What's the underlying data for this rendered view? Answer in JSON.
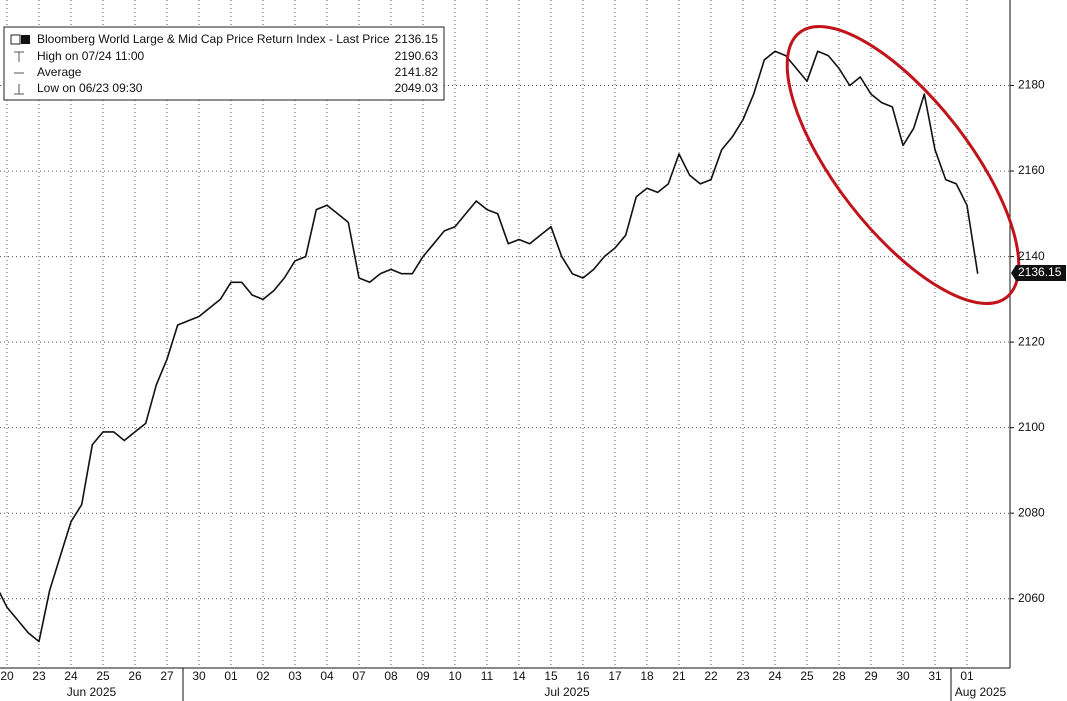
{
  "chart_data": {
    "type": "line",
    "categories": [
      null,
      "20",
      null,
      null,
      "23",
      null,
      null,
      "24",
      null,
      null,
      "25",
      null,
      null,
      "26",
      null,
      null,
      "27",
      null,
      null,
      "30",
      null,
      null,
      "01",
      null,
      null,
      "02",
      null,
      null,
      "03",
      null,
      null,
      "04",
      null,
      null,
      "07",
      null,
      null,
      "08",
      null,
      null,
      "09",
      null,
      null,
      "10",
      null,
      null,
      "11",
      null,
      null,
      "14",
      null,
      null,
      "15",
      null,
      null,
      "16",
      null,
      null,
      "17",
      null,
      null,
      "18",
      null,
      null,
      "21",
      null,
      null,
      "22",
      null,
      null,
      "23",
      null,
      null,
      "24",
      null,
      null,
      "25",
      null,
      null,
      "28",
      null,
      null,
      "29",
      null,
      null,
      "30",
      null,
      null,
      "31",
      null,
      null,
      "01",
      null
    ],
    "x_groups": [
      "Jun 2025",
      "Jul 2025",
      "Aug 2025"
    ],
    "series": [
      {
        "name": "Bloomberg World Large & Mid Cap Price Return Index - Last Price",
        "color": "#111111",
        "values": [
          2063,
          2058,
          2055,
          2052,
          2050,
          2062,
          2070,
          2078,
          2082,
          2096,
          2099,
          2099,
          2097,
          2099,
          2101,
          2110,
          2116,
          2124,
          2125,
          2126,
          2128,
          2130,
          2134,
          2134,
          2131,
          2130,
          2132,
          2135,
          2139,
          2140,
          2151,
          2152,
          2150,
          2148,
          2135,
          2134,
          2136,
          2137,
          2136,
          2136,
          2140,
          2143,
          2146,
          2147,
          2150,
          2153,
          2151,
          2150,
          2143,
          2144,
          2143,
          2145,
          2147,
          2140,
          2136,
          2135,
          2137,
          2140,
          2142,
          2145,
          2154,
          2156,
          2155,
          2157,
          2164,
          2159,
          2157,
          2158,
          2165,
          2168,
          2172,
          2178,
          2186,
          2188,
          2187,
          2184,
          2181,
          2188,
          2187,
          2184,
          2180,
          2182,
          2178,
          2176,
          2175,
          2166,
          2170,
          2178,
          2165,
          2158,
          2157,
          2152,
          2136
        ]
      }
    ],
    "last_value": 2136.15,
    "stats": [
      {
        "label": "High on 07/24 11:00",
        "value": 2190.63
      },
      {
        "label": "Average",
        "value": 2141.82
      },
      {
        "label": "Low on 06/23 09:30",
        "value": 2049.03
      }
    ],
    "ylim": [
      2043.8,
      2200
    ],
    "yticks": [
      2060,
      2080,
      2100,
      2120,
      2140,
      2160,
      2180
    ],
    "grid": true
  }
}
